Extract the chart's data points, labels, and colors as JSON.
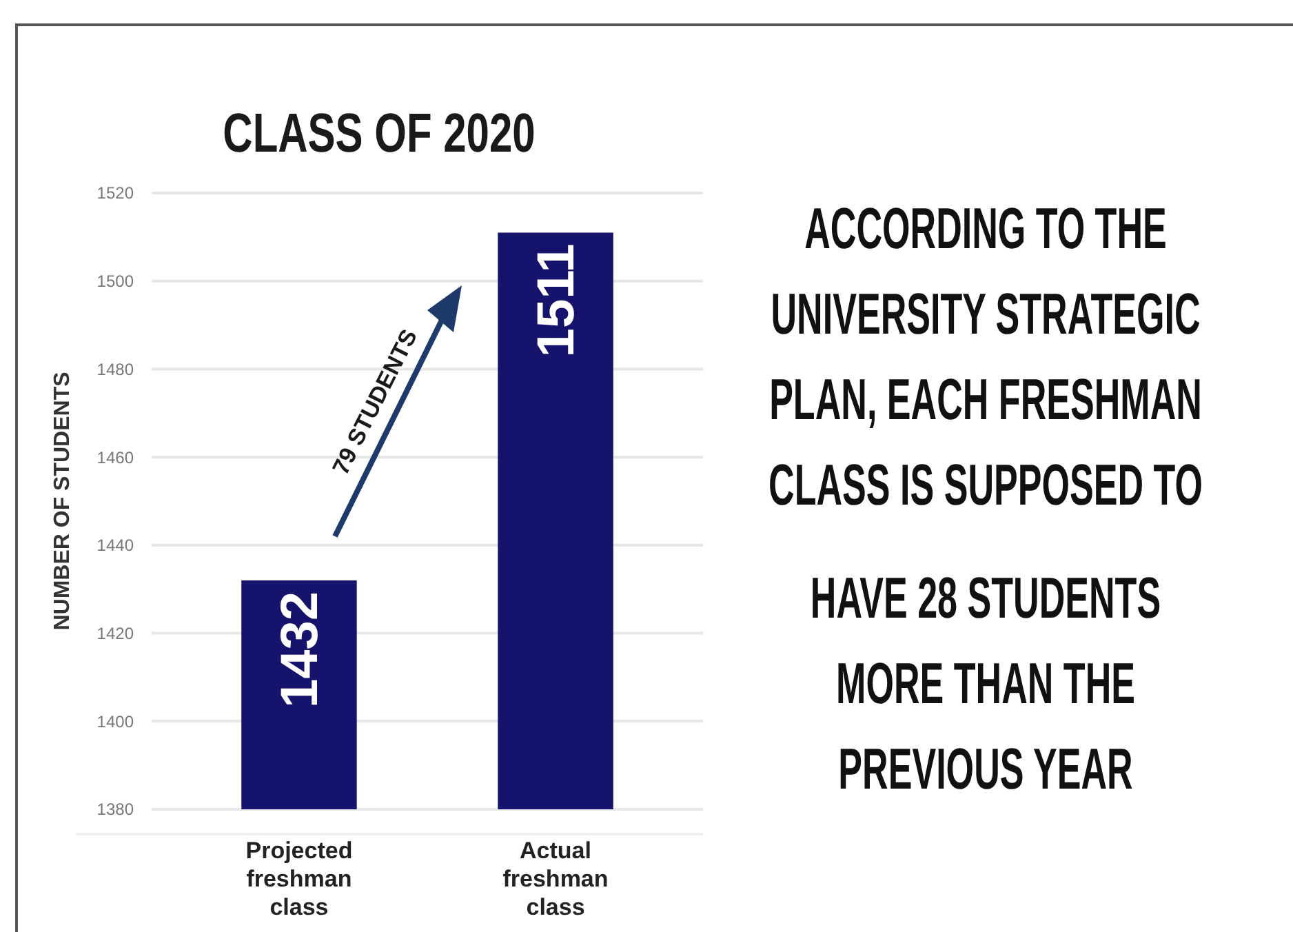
{
  "chart_data": {
    "type": "bar",
    "title": "CLASS OF 2020",
    "ylabel": "NUMBER OF STUDENTS",
    "categories": [
      "Projected freshman class",
      "Actual freshman class"
    ],
    "values": [
      1432,
      1511
    ],
    "color": "#15136b",
    "data_labels": true,
    "ylim": [
      1380,
      1520
    ],
    "yticks": [
      1380,
      1400,
      1420,
      1440,
      1460,
      1480,
      1500,
      1520
    ],
    "grid": "y",
    "annotations": [
      "79 STUDENTS",
      "ACCORDING TO THE",
      "UNIVERSITY STRATEGIC",
      "PLAN, EACH FRESHMAN",
      "CLASS IS SUPPOSED TO",
      "HAVE 28 STUDENTS",
      "MORE THAN THE",
      "PREVIOUS YEAR"
    ]
  }
}
